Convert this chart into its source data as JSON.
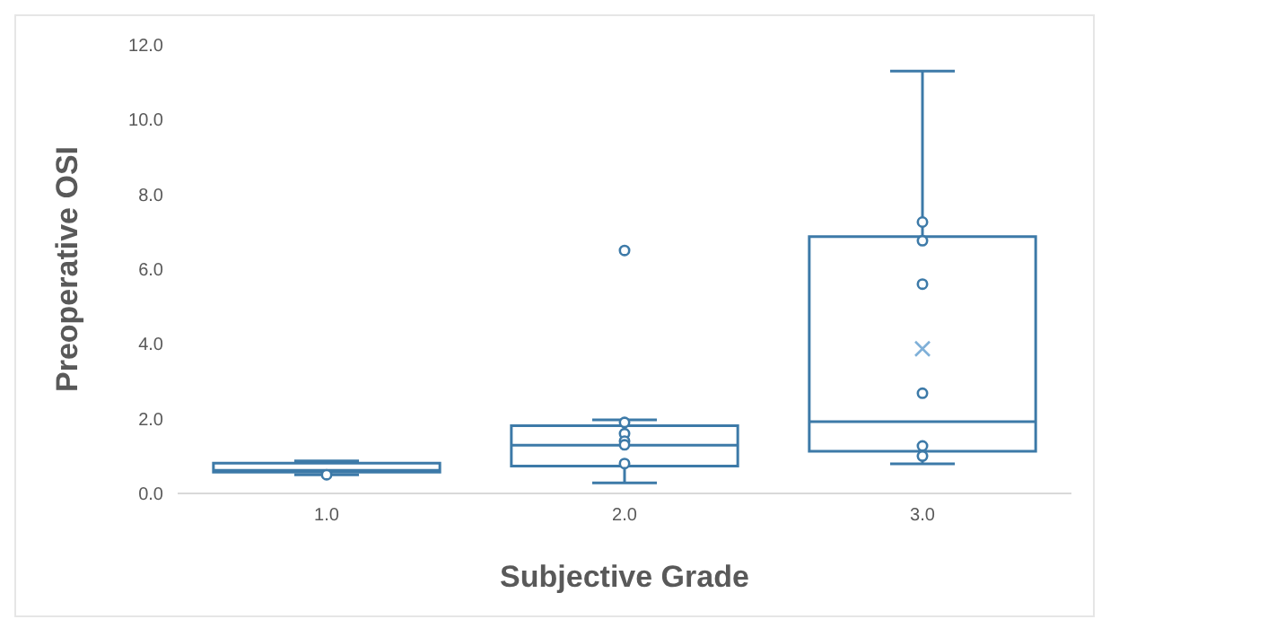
{
  "chart_data": {
    "type": "box",
    "categories": [
      "1.0",
      "2.0",
      "3.0"
    ],
    "xlabel": "Subjective Grade",
    "ylabel": "Preoperative OSI",
    "ylim": [
      0,
      12
    ],
    "yticks": [
      {
        "value": 0,
        "label": "0.0"
      },
      {
        "value": 2,
        "label": "2.0"
      },
      {
        "value": 4,
        "label": "4.0"
      },
      {
        "value": 6,
        "label": "6.0"
      },
      {
        "value": 8,
        "label": "8.0"
      },
      {
        "value": 10,
        "label": "10.0"
      },
      {
        "value": 12,
        "label": "12.0"
      }
    ],
    "grid": false,
    "marker": "circle",
    "series": [
      {
        "color": "#3d7aa8",
        "boxes": [
          {
            "low": 0.5,
            "q1": 0.57,
            "median": 0.62,
            "q3": 0.81,
            "high": 0.87
          },
          {
            "low": 0.28,
            "q1": 0.73,
            "median": 1.29,
            "q3": 1.81,
            "high": 1.97,
            "outliers": [
              6.5
            ]
          },
          {
            "low": 0.79,
            "q1": 1.13,
            "median": 1.92,
            "q3": 6.87,
            "high": 11.3,
            "mean": 3.87
          }
        ]
      },
      {
        "type": "scatter",
        "color": "#3d7aa8",
        "x": [
          "1.0",
          "2.0",
          "2.0",
          "2.0",
          "2.0",
          "2.0",
          "3.0",
          "3.0",
          "3.0",
          "3.0",
          "3.0",
          "3.0"
        ],
        "values": [
          0.5,
          1.9,
          1.6,
          1.4,
          1.3,
          0.8,
          7.26,
          6.76,
          5.6,
          2.68,
          1.27,
          1.0
        ]
      }
    ]
  }
}
